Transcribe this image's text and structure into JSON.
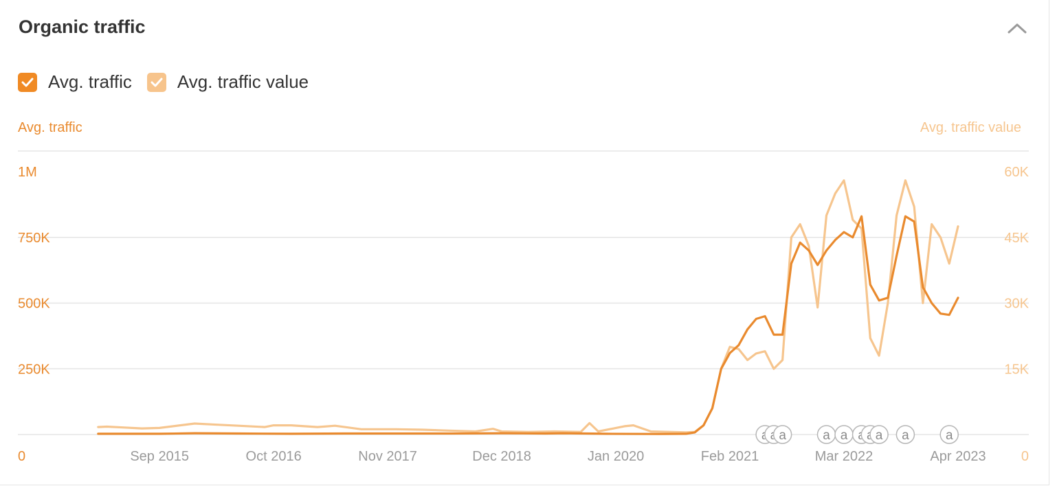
{
  "header": {
    "title": "Organic traffic",
    "collapse_icon": "chevron-up-icon"
  },
  "legend": [
    {
      "label": "Avg. traffic",
      "checked": true,
      "color": "#f08a24"
    },
    {
      "label": "Avg. traffic value",
      "checked": true,
      "color": "#f7c48c"
    }
  ],
  "colors": {
    "traffic": "#e98a2e",
    "value": "#f6c58e",
    "grid": "#e5e5e5",
    "annotation": "#b5b5b5"
  },
  "chart_data": {
    "type": "line",
    "x_start": "2015-01",
    "x_end": "2023-04",
    "x_ticks": [
      "Sep 2015",
      "Oct 2016",
      "Nov 2017",
      "Dec 2018",
      "Jan 2020",
      "Feb 2021",
      "Mar 2022",
      "Apr 2023"
    ],
    "y_left": {
      "label": "Avg. traffic",
      "ticks": [
        "0",
        "250K",
        "500K",
        "750K",
        "1M"
      ],
      "range": [
        0,
        1000000
      ]
    },
    "y_right": {
      "label": "Avg. traffic value",
      "ticks": [
        "0",
        "15K",
        "30K",
        "45K",
        "60K"
      ],
      "range": [
        0,
        60000
      ]
    },
    "annotation_label": "a",
    "annotations": [
      "2021-06",
      "2021-07",
      "2021-08",
      "2022-01",
      "2022-03",
      "2022-05",
      "2022-06",
      "2022-07",
      "2022-10",
      "2023-03"
    ],
    "series": [
      {
        "name": "Avg. traffic",
        "axis": "left",
        "points": [
          [
            "2015-02",
            3000
          ],
          [
            "2015-05",
            3000
          ],
          [
            "2015-09",
            3000
          ],
          [
            "2016-01",
            5000
          ],
          [
            "2016-06",
            4000
          ],
          [
            "2016-12",
            3000
          ],
          [
            "2017-06",
            4000
          ],
          [
            "2017-12",
            4000
          ],
          [
            "2018-06",
            4000
          ],
          [
            "2018-12",
            5000
          ],
          [
            "2019-05",
            4000
          ],
          [
            "2019-07",
            5000
          ],
          [
            "2019-12",
            3000
          ],
          [
            "2020-06",
            2000
          ],
          [
            "2020-09",
            3000
          ],
          [
            "2020-10",
            8000
          ],
          [
            "2020-11",
            35000
          ],
          [
            "2020-12",
            100000
          ],
          [
            "2021-01",
            250000
          ],
          [
            "2021-02",
            310000
          ],
          [
            "2021-03",
            340000
          ],
          [
            "2021-04",
            400000
          ],
          [
            "2021-05",
            440000
          ],
          [
            "2021-06",
            450000
          ],
          [
            "2021-07",
            380000
          ],
          [
            "2021-08",
            380000
          ],
          [
            "2021-09",
            650000
          ],
          [
            "2021-10",
            730000
          ],
          [
            "2021-11",
            700000
          ],
          [
            "2021-12",
            645000
          ],
          [
            "2022-01",
            700000
          ],
          [
            "2022-02",
            740000
          ],
          [
            "2022-03",
            770000
          ],
          [
            "2022-04",
            750000
          ],
          [
            "2022-05",
            830000
          ],
          [
            "2022-06",
            570000
          ],
          [
            "2022-07",
            510000
          ],
          [
            "2022-08",
            520000
          ],
          [
            "2022-09",
            680000
          ],
          [
            "2022-10",
            830000
          ],
          [
            "2022-11",
            810000
          ],
          [
            "2022-12",
            560000
          ],
          [
            "2023-01",
            500000
          ],
          [
            "2023-02",
            460000
          ],
          [
            "2023-03",
            455000
          ],
          [
            "2023-04",
            520000
          ]
        ]
      },
      {
        "name": "Avg. traffic value",
        "axis": "right",
        "points": [
          [
            "2015-02",
            1700
          ],
          [
            "2015-03",
            1800
          ],
          [
            "2015-05",
            1600
          ],
          [
            "2015-07",
            1400
          ],
          [
            "2015-09",
            1500
          ],
          [
            "2016-01",
            2500
          ],
          [
            "2016-03",
            2300
          ],
          [
            "2016-06",
            2000
          ],
          [
            "2016-09",
            1700
          ],
          [
            "2016-10",
            2100
          ],
          [
            "2016-12",
            2100
          ],
          [
            "2017-03",
            1700
          ],
          [
            "2017-05",
            2000
          ],
          [
            "2017-08",
            1200
          ],
          [
            "2017-12",
            1200
          ],
          [
            "2018-03",
            1100
          ],
          [
            "2018-06",
            900
          ],
          [
            "2018-09",
            700
          ],
          [
            "2018-11",
            1300
          ],
          [
            "2018-12",
            700
          ],
          [
            "2019-03",
            600
          ],
          [
            "2019-06",
            700
          ],
          [
            "2019-09",
            600
          ],
          [
            "2019-10",
            2600
          ],
          [
            "2019-11",
            700
          ],
          [
            "2020-02",
            1900
          ],
          [
            "2020-03",
            2100
          ],
          [
            "2020-05",
            700
          ],
          [
            "2020-09",
            500
          ],
          [
            "2020-10",
            600
          ],
          [
            "2020-11",
            2100
          ],
          [
            "2020-12",
            6000
          ],
          [
            "2021-01",
            15000
          ],
          [
            "2021-02",
            20000
          ],
          [
            "2021-03",
            19500
          ],
          [
            "2021-04",
            17000
          ],
          [
            "2021-05",
            18500
          ],
          [
            "2021-06",
            19000
          ],
          [
            "2021-07",
            15000
          ],
          [
            "2021-08",
            17000
          ],
          [
            "2021-09",
            45000
          ],
          [
            "2021-10",
            48000
          ],
          [
            "2021-11",
            43000
          ],
          [
            "2021-12",
            29000
          ],
          [
            "2022-01",
            50000
          ],
          [
            "2022-02",
            55000
          ],
          [
            "2022-03",
            58000
          ],
          [
            "2022-04",
            49000
          ],
          [
            "2022-05",
            47000
          ],
          [
            "2022-06",
            22000
          ],
          [
            "2022-07",
            18000
          ],
          [
            "2022-08",
            30000
          ],
          [
            "2022-09",
            50000
          ],
          [
            "2022-10",
            58000
          ],
          [
            "2022-11",
            52000
          ],
          [
            "2022-12",
            30000
          ],
          [
            "2023-01",
            48000
          ],
          [
            "2023-02",
            45000
          ],
          [
            "2023-03",
            39000
          ],
          [
            "2023-04",
            47500
          ]
        ]
      }
    ]
  }
}
